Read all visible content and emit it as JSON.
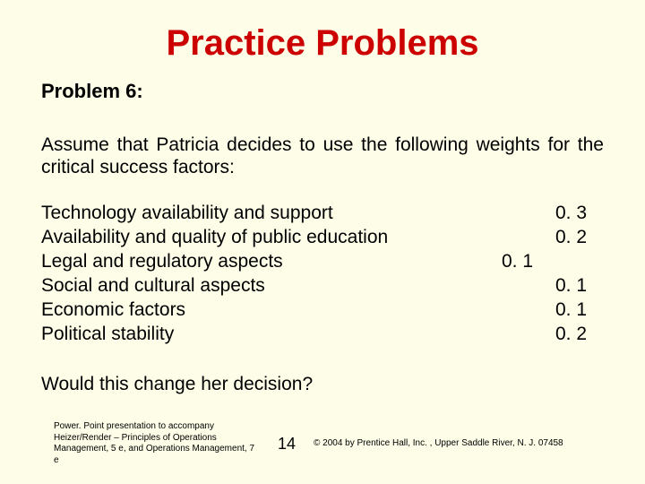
{
  "title": "Practice Problems",
  "heading": "Problem 6:",
  "intro": "Assume that Patricia decides to use the following weights for the critical success factors:",
  "factors": [
    {
      "label": "Technology availability and support",
      "mid": "",
      "right": "0. 3"
    },
    {
      "label": "Availability and quality of public education",
      "mid": "",
      "right": "0. 2"
    },
    {
      "label": "Legal and regulatory aspects",
      "mid": "0. 1",
      "right": ""
    },
    {
      "label": "Social and cultural aspects",
      "mid": "",
      "right": "0. 1"
    },
    {
      "label": "Economic factors",
      "mid": "",
      "right": "0. 1"
    },
    {
      "label": "Political stability",
      "mid": "",
      "right": "0. 2"
    }
  ],
  "question": "Would this change her decision?",
  "footer_left": "Power. Point presentation to accompany Heizer/Render – Principles of Operations Management, 5 e, and Operations Management, 7 e",
  "page_number": "14",
  "footer_right": "© 2004 by Prentice Hall, Inc. , Upper Saddle River, N. J. 07458"
}
